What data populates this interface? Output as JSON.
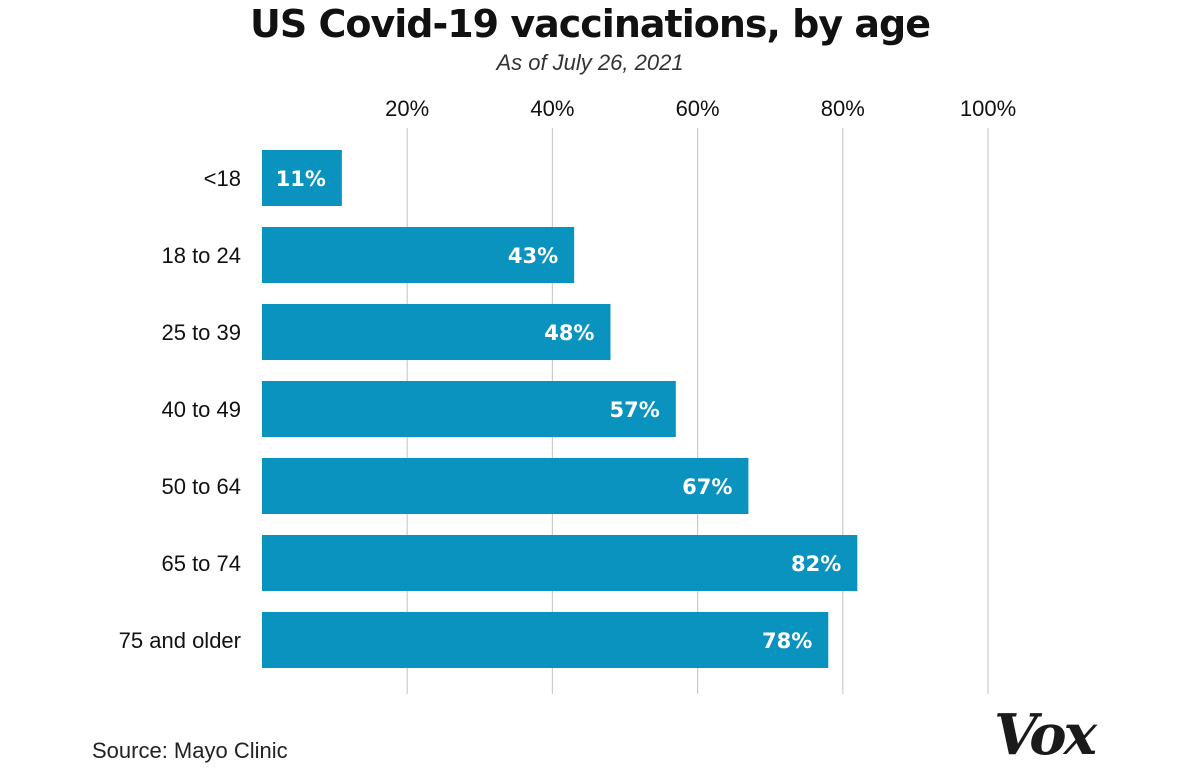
{
  "chart_data": {
    "type": "bar",
    "orientation": "horizontal",
    "title": "US Covid-19 vaccinations, by age",
    "subtitle": "As of July 26, 2021",
    "categories": [
      "<18",
      "18 to 24",
      "25 to 39",
      "40 to 49",
      "50 to 64",
      "65 to 74",
      "75 and older"
    ],
    "values": [
      11,
      43,
      48,
      57,
      67,
      82,
      78
    ],
    "data_labels": [
      "11%",
      "43%",
      "48%",
      "57%",
      "67%",
      "82%",
      "78%"
    ],
    "xlim": [
      0,
      100
    ],
    "x_ticks": [
      20,
      40,
      60,
      80,
      100
    ],
    "x_tick_labels": [
      "20%",
      "40%",
      "60%",
      "80%",
      "100%"
    ],
    "x_axis_position": "top",
    "grid": true,
    "bar_color": "#0a93bf",
    "gridline_color": "#cccccc"
  },
  "footer": {
    "source": "Source: Mayo Clinic",
    "logo": "Vox"
  }
}
